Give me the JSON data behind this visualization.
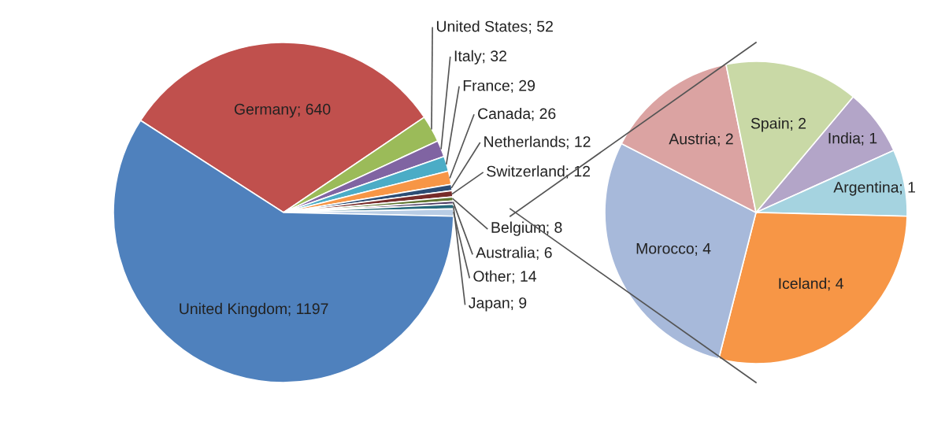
{
  "chart_data": [
    {
      "type": "pie",
      "categories": [
        "Germany",
        "United States",
        "Italy",
        "France",
        "Canada",
        "Netherlands",
        "Switzerland",
        "Belgium",
        "Australia",
        "Japan",
        "Other",
        "United Kingdom"
      ],
      "values": [
        640,
        52,
        32,
        29,
        26,
        12,
        12,
        8,
        6,
        9,
        14,
        1197
      ],
      "colors": [
        "#c0504d",
        "#9bbb59",
        "#8064a2",
        "#4bacc6",
        "#f79646",
        "#2c4d75",
        "#772c2a",
        "#5f7530",
        "#4d3b62",
        "#276a7c",
        "#b9cde5",
        "#4f81bd"
      ],
      "value_labels": [
        "; 640",
        "; 52",
        "; 32",
        "; 29",
        "; 26",
        "; 12",
        "; 12",
        "; 8",
        "; 6",
        "; 9",
        "; 14",
        "; 1197"
      ]
    },
    {
      "type": "pie",
      "categories": [
        "India",
        "Argentina",
        "Iceland",
        "Morocco",
        "Austria",
        "Spain"
      ],
      "values": [
        1,
        1,
        4,
        4,
        2,
        2
      ],
      "colors": [
        "#b3a5c8",
        "#a5d3e0",
        "#f79646",
        "#a7b9da",
        "#dba3a2",
        "#c9d9a6"
      ],
      "value_labels": [
        "; 1",
        "; 1",
        "; 4",
        "; 4",
        "; 2",
        "; 2"
      ]
    }
  ]
}
